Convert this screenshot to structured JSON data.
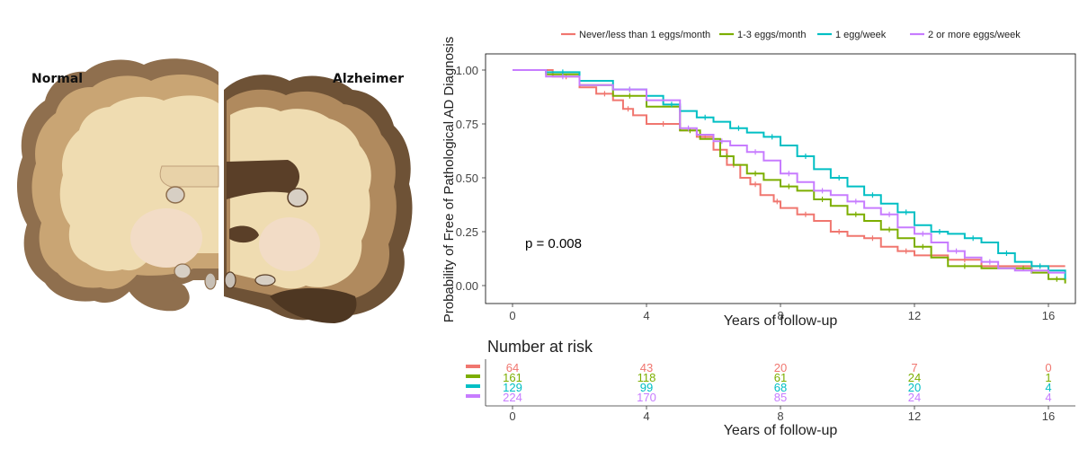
{
  "illustration": {
    "left_label": "Normal",
    "right_label": "Alzheimer"
  },
  "chart_data": {
    "type": "line",
    "ylabel": "Probability of Free of Pathological AD Diagnosis",
    "xlabel": "Years of follow-up",
    "xlim": [
      0,
      16.5
    ],
    "ylim": [
      0,
      1.0
    ],
    "xticks": [
      0,
      4,
      8,
      12,
      16
    ],
    "yticks": [
      0.0,
      0.25,
      0.5,
      0.75,
      1.0
    ],
    "ytick_labels": [
      "0.00",
      "0.25",
      "0.50",
      "0.75",
      "1.00"
    ],
    "legend_position": "top",
    "annotation": "p = 0.008",
    "series": [
      {
        "name": "Never/less than 1 eggs/month",
        "color": "#F0766F",
        "x": [
          0,
          1.2,
          2.0,
          2.5,
          3.0,
          3.3,
          3.6,
          4.0,
          5.0,
          5.5,
          6.0,
          6.4,
          6.8,
          7.1,
          7.4,
          7.8,
          8.0,
          8.5,
          9.0,
          9.5,
          10.0,
          10.5,
          11.0,
          11.5,
          12.0,
          13.0,
          14.0,
          15.0,
          16.0,
          16.5
        ],
        "y": [
          1.0,
          0.97,
          0.92,
          0.89,
          0.86,
          0.82,
          0.79,
          0.75,
          0.72,
          0.69,
          0.63,
          0.56,
          0.5,
          0.47,
          0.42,
          0.39,
          0.36,
          0.33,
          0.3,
          0.25,
          0.23,
          0.22,
          0.18,
          0.16,
          0.14,
          0.12,
          0.09,
          0.09,
          0.09,
          0.09
        ]
      },
      {
        "name": "1-3 eggs/month",
        "color": "#7CAE00",
        "x": [
          0,
          1.0,
          2.0,
          3.0,
          4.0,
          5.0,
          5.6,
          6.2,
          6.6,
          7.0,
          7.5,
          8.0,
          8.5,
          9.0,
          9.5,
          10.0,
          10.5,
          11.0,
          11.5,
          12.0,
          12.5,
          13.0,
          14.0,
          15.0,
          15.5,
          16.0,
          16.5
        ],
        "y": [
          1.0,
          0.98,
          0.93,
          0.88,
          0.83,
          0.72,
          0.68,
          0.6,
          0.56,
          0.52,
          0.49,
          0.46,
          0.44,
          0.4,
          0.37,
          0.33,
          0.3,
          0.26,
          0.22,
          0.18,
          0.13,
          0.09,
          0.08,
          0.08,
          0.06,
          0.03,
          0.01
        ]
      },
      {
        "name": "1 egg/week",
        "color": "#00BFC4",
        "x": [
          0,
          1.0,
          2.0,
          3.0,
          4.0,
          4.5,
          5.0,
          5.5,
          6.0,
          6.5,
          7.0,
          7.5,
          8.0,
          8.5,
          9.0,
          9.5,
          10.0,
          10.5,
          11.0,
          11.5,
          12.0,
          12.5,
          13.0,
          13.5,
          14.0,
          14.5,
          15.0,
          15.5,
          16.0,
          16.5
        ],
        "y": [
          1.0,
          0.99,
          0.95,
          0.91,
          0.88,
          0.84,
          0.81,
          0.78,
          0.76,
          0.73,
          0.71,
          0.69,
          0.65,
          0.6,
          0.54,
          0.5,
          0.46,
          0.42,
          0.38,
          0.34,
          0.28,
          0.25,
          0.24,
          0.22,
          0.2,
          0.15,
          0.11,
          0.09,
          0.07,
          0.03
        ]
      },
      {
        "name": "2 or more eggs/week",
        "color": "#C77CFF",
        "x": [
          0,
          1.0,
          2.0,
          3.0,
          4.0,
          5.0,
          5.5,
          6.0,
          6.5,
          7.0,
          7.5,
          8.0,
          8.5,
          9.0,
          9.5,
          10.0,
          10.5,
          11.0,
          11.5,
          12.0,
          12.5,
          13.0,
          13.5,
          14.0,
          14.5,
          15.0,
          16.0,
          16.5
        ],
        "y": [
          1.0,
          0.97,
          0.93,
          0.91,
          0.86,
          0.73,
          0.7,
          0.67,
          0.65,
          0.62,
          0.58,
          0.52,
          0.48,
          0.44,
          0.42,
          0.39,
          0.36,
          0.33,
          0.27,
          0.24,
          0.2,
          0.16,
          0.13,
          0.11,
          0.08,
          0.07,
          0.06,
          0.06
        ]
      }
    ],
    "risk_table": {
      "title": "Number at risk",
      "xlabel": "Years of follow-up",
      "times": [
        0,
        4,
        8,
        12,
        16
      ],
      "rows": [
        {
          "color": "#F0766F",
          "values": [
            "64",
            "43",
            "20",
            "7",
            "0"
          ]
        },
        {
          "color": "#7CAE00",
          "values": [
            "161",
            "118",
            "61",
            "24",
            "1"
          ]
        },
        {
          "color": "#00BFC4",
          "values": [
            "129",
            "99",
            "68",
            "20",
            "4"
          ]
        },
        {
          "color": "#C77CFF",
          "values": [
            "224",
            "170",
            "85",
            "24",
            "4"
          ]
        }
      ]
    }
  }
}
